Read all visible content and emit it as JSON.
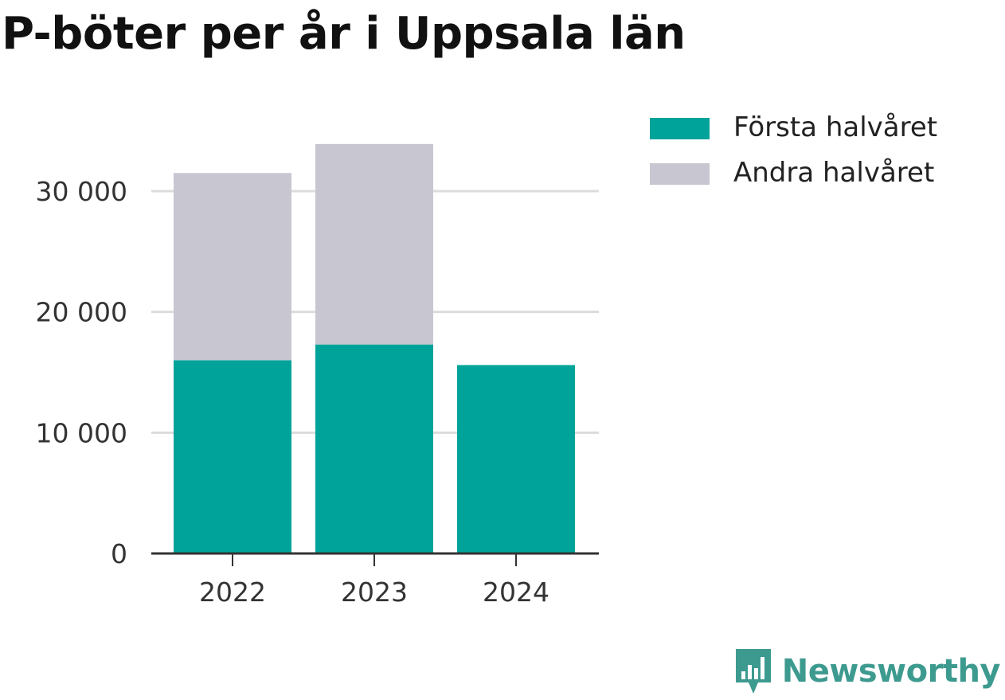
{
  "chart_data": {
    "type": "bar",
    "stacked": true,
    "title": "P-böter per år i Uppsala län",
    "categories": [
      "2022",
      "2023",
      "2024"
    ],
    "series": [
      {
        "name": "Första halvåret",
        "values": [
          16000,
          17300,
          15600
        ],
        "color": "#00a39a"
      },
      {
        "name": "Andra halvåret",
        "values": [
          15500,
          16600,
          0
        ],
        "color": "#c8c7d1"
      }
    ],
    "yticks": [
      0,
      10000,
      20000,
      30000
    ],
    "ytick_labels": [
      "0",
      "10 000",
      "20 000",
      "30 000"
    ],
    "ylim": [
      0,
      34000
    ],
    "grid": true,
    "legend_position": "right"
  },
  "brand": {
    "name": "Newsworthy",
    "color": "#3d9a8f",
    "icon": "bar-chart-speech-icon"
  }
}
